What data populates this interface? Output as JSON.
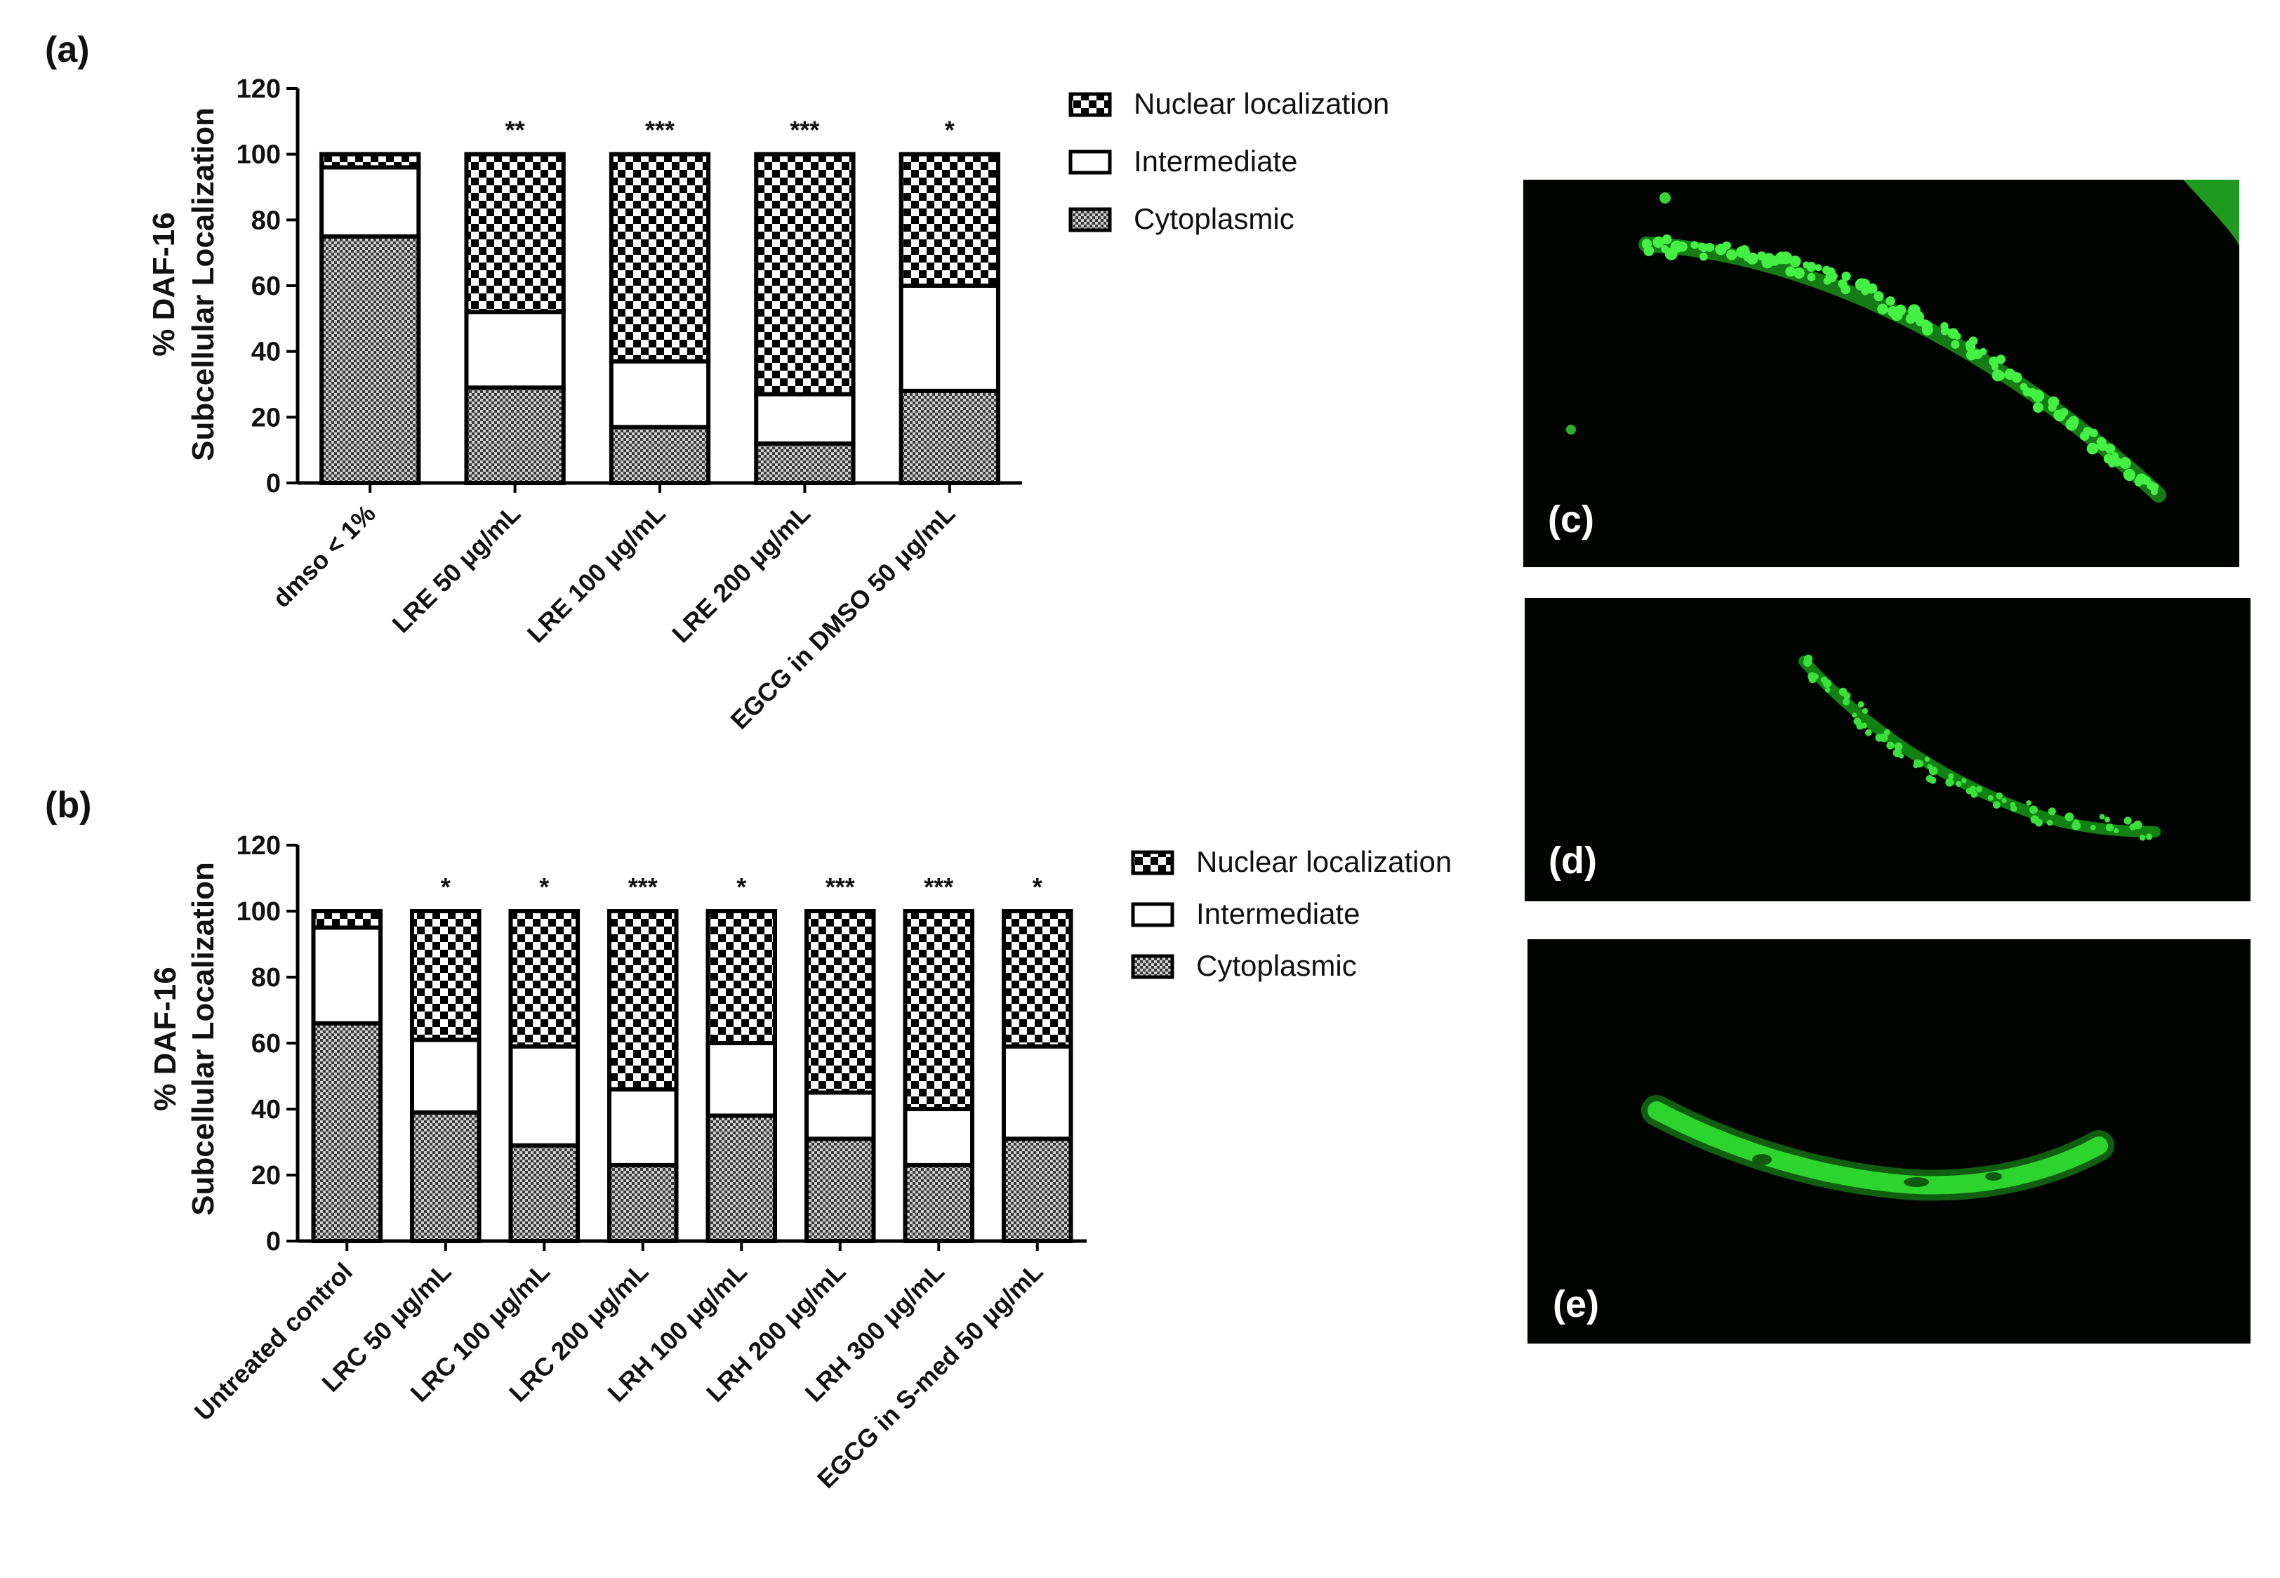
{
  "chart_data": [
    {
      "type": "bar",
      "stacked": true,
      "panel_label": "(a)",
      "ylabel_line1": "% DAF-16",
      "ylabel_line2": "Subcellular Localization",
      "ylim": [
        0,
        120
      ],
      "yticks": [
        0,
        20,
        40,
        60,
        80,
        100,
        120
      ],
      "categories": [
        "dmso < 1%",
        "LRE 50 μg/mL",
        "LRE 100 μg/mL",
        "LRE 200 μg/mL",
        "EGCG in DMSO 50 μg/mL"
      ],
      "significance": [
        "",
        "**",
        "***",
        "***",
        "*"
      ],
      "series": [
        {
          "name": "Cytoplasmic",
          "values": [
            75,
            29,
            17,
            12,
            28
          ]
        },
        {
          "name": "Intermediate",
          "values": [
            21,
            23,
            20,
            15,
            32
          ]
        },
        {
          "name": "Nuclear localization",
          "values": [
            4,
            48,
            63,
            73,
            40
          ]
        }
      ],
      "legend": [
        "Nuclear localization",
        "Intermediate",
        "Cytoplasmic"
      ],
      "legend_position": "right"
    },
    {
      "type": "bar",
      "stacked": true,
      "panel_label": "(b)",
      "ylabel_line1": "% DAF-16",
      "ylabel_line2": "Subcellular Localization",
      "ylim": [
        0,
        120
      ],
      "yticks": [
        0,
        20,
        40,
        60,
        80,
        100,
        120
      ],
      "categories": [
        "Untreated control",
        "LRC 50 μg/mL",
        "LRC 100 μg/mL",
        "LRC 200 μg/mL",
        "LRH 100 μg/mL",
        "LRH 200 μg/mL",
        "LRH 300 μg/mL",
        "EGCG in S-med 50 μg/mL"
      ],
      "significance": [
        "",
        "*",
        "*",
        "***",
        "*",
        "***",
        "***",
        "*"
      ],
      "series": [
        {
          "name": "Cytoplasmic",
          "values": [
            66,
            39,
            29,
            23,
            38,
            31,
            23,
            31
          ]
        },
        {
          "name": "Intermediate",
          "values": [
            29,
            22,
            30,
            23,
            22,
            14,
            17,
            28
          ]
        },
        {
          "name": "Nuclear localization",
          "values": [
            5,
            39,
            41,
            54,
            40,
            55,
            60,
            41
          ]
        }
      ],
      "legend": [
        "Nuclear localization",
        "Intermediate",
        "Cytoplasmic"
      ],
      "legend_position": "right"
    }
  ],
  "colors": {
    "pattern_dark": "#000000",
    "pattern_light": "#ffffff",
    "cytoplasmic_fill": "#9a9a9a",
    "micrograph_bg": "#020402",
    "gfp_green": "#33e633"
  },
  "micrographs": [
    {
      "label": "(c)",
      "content": "diffuse-nuclear-gfp-worm"
    },
    {
      "label": "(d)",
      "content": "intermediate-gfp-worm"
    },
    {
      "label": "(e)",
      "content": "cytoplasmic-gfp-worm"
    }
  ]
}
